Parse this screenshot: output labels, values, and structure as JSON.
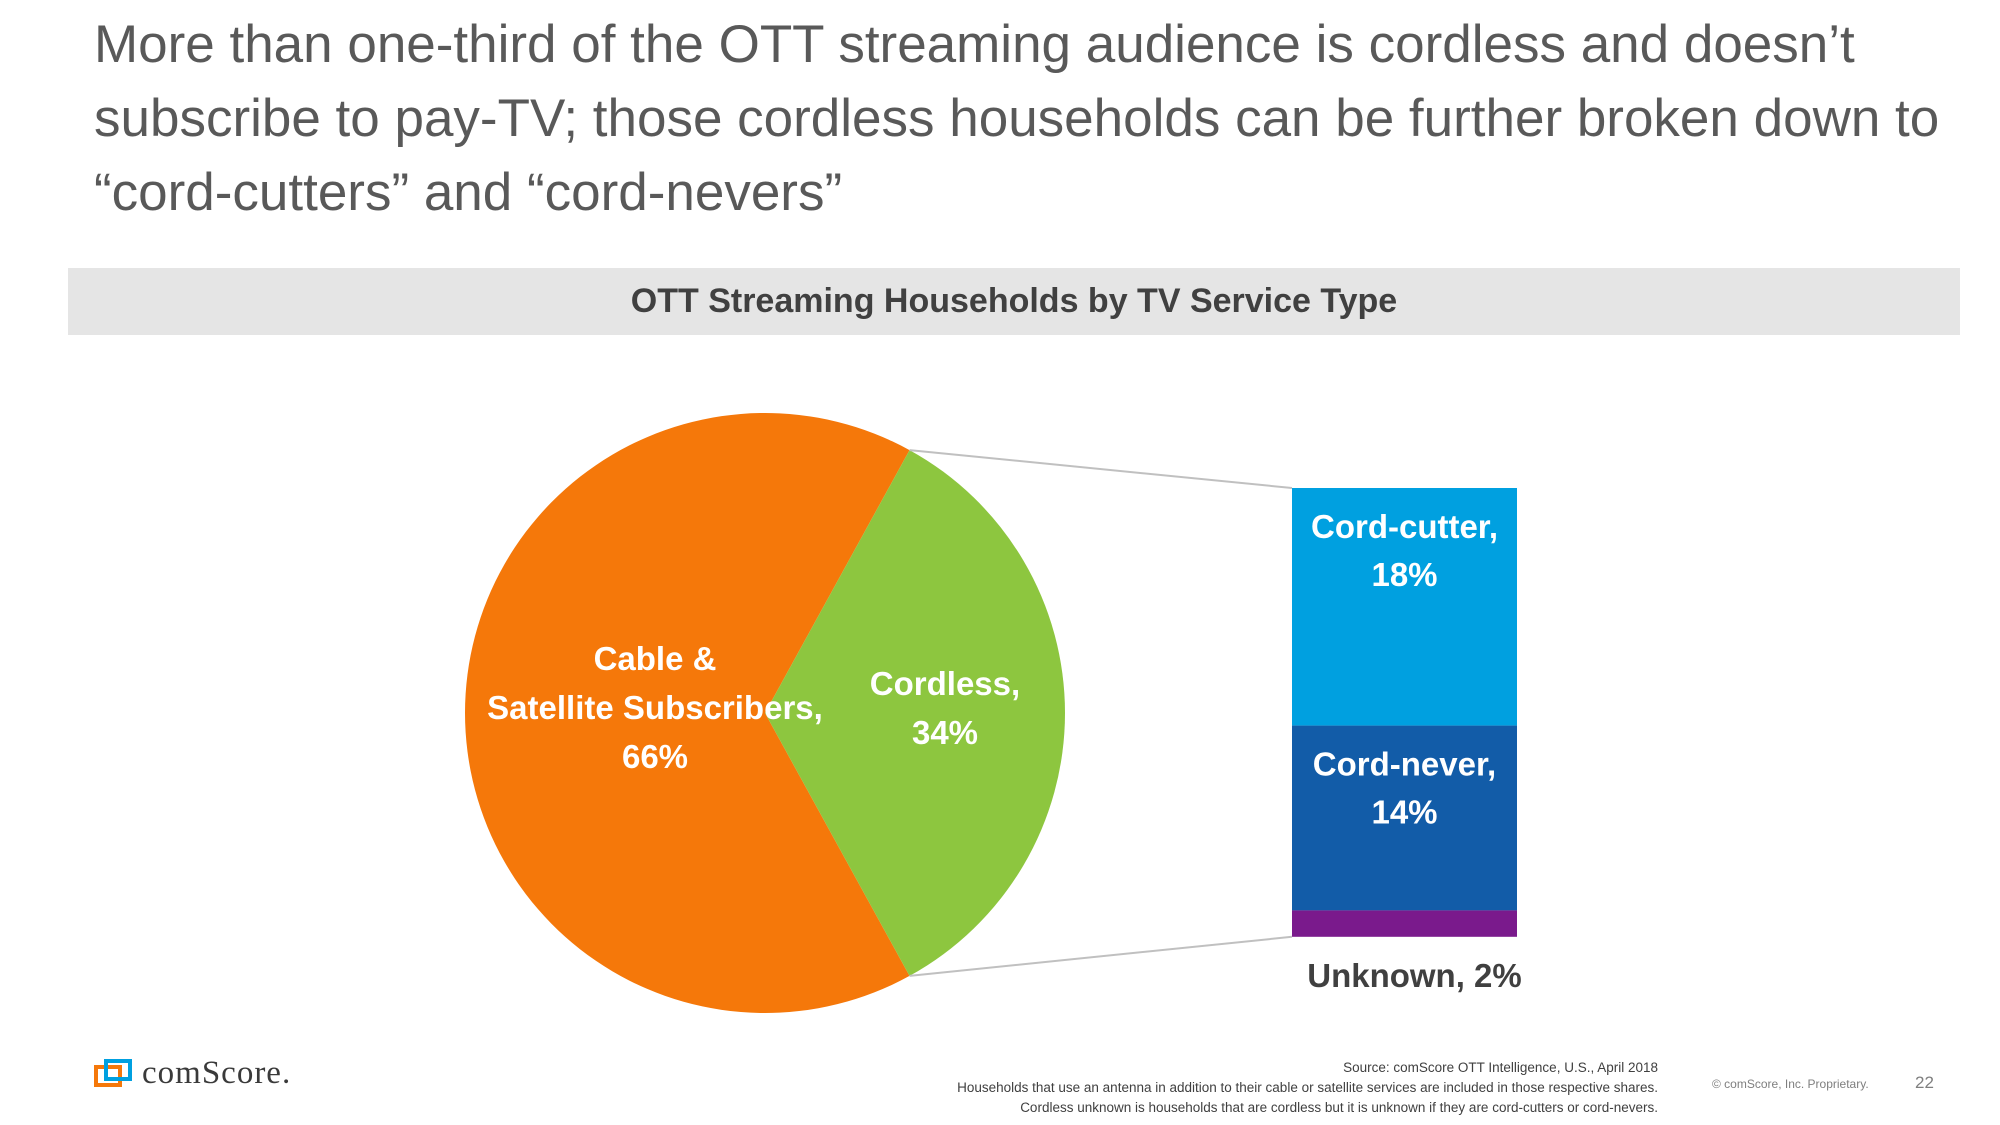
{
  "slide": {
    "headline": "More than one-third of the OTT streaming audience is cordless and doesn’t subscribe to pay-TV; those cordless households can be further broken down to “cord-cutters” and “cord-nevers”",
    "chart_banner": "OTT Streaming Households by TV Service Type",
    "logo_text": "comScore.",
    "source_lines": [
      "Source: comScore OTT Intelligence, U.S., April 2018",
      "Households that use an antenna in addition to their cable or satellite services are included in those respective shares.",
      "Cordless unknown is households that are cordless but it is unknown if they are cord-cutters or cord-nevers."
    ],
    "copyright": "© comScore, Inc. Proprietary.",
    "page_number": "22"
  },
  "chart_data": [
    {
      "type": "pie",
      "title": "OTT Streaming Households by TV Service Type",
      "slices": [
        {
          "label_lines": [
            "Cable &",
            "Satellite Subscribers,",
            "66%"
          ],
          "name": "Cable & Satellite Subscribers",
          "value": 66,
          "color": "#f5780a"
        },
        {
          "label_lines": [
            "Cordless,",
            "34%"
          ],
          "name": "Cordless",
          "value": 34,
          "color": "#8dc63f"
        }
      ]
    },
    {
      "type": "bar",
      "stacked": true,
      "breakdown_of": "Cordless",
      "segments": [
        {
          "label_lines": [
            "Cord-cutter,",
            "18%"
          ],
          "name": "Cord-cutter",
          "value": 18,
          "color": "#00a0e0",
          "text_color": "#ffffff"
        },
        {
          "label_lines": [
            "Cord-never,",
            "14%"
          ],
          "name": "Cord-never",
          "value": 14,
          "color": "#125ca8",
          "text_color": "#ffffff"
        },
        {
          "label_lines": [
            "Unknown, 2%"
          ],
          "name": "Unknown",
          "value": 2,
          "color": "#7a1a8c",
          "text_color": "#404040",
          "label_outside": true
        }
      ]
    }
  ],
  "colors": {
    "connector": "#c0c0c0",
    "banner_bg": "#e5e5e5",
    "headline": "#595959",
    "logo_orange": "#f5780a",
    "logo_blue": "#00a0e0"
  },
  "icons": {
    "logo": "comscore-logo-icon"
  }
}
